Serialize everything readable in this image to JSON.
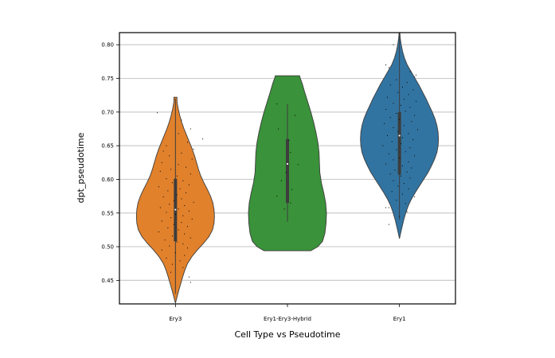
{
  "chart_data": {
    "type": "violin",
    "title": "",
    "xlabel": "Cell Type vs Pseudotime",
    "ylabel": "dpt_pseudotime",
    "ylim": [
      0.415,
      0.818
    ],
    "yticks": [
      0.45,
      0.5,
      0.55,
      0.6,
      0.65,
      0.7,
      0.75,
      0.8
    ],
    "ytick_labels": [
      "0.45",
      "0.50",
      "0.55",
      "0.60",
      "0.65",
      "0.70",
      "0.75",
      "0.80"
    ],
    "grid": "horizontal",
    "legend": "none",
    "categories": [
      "Ery3",
      "Ery1-Ery3-Hybrid",
      "Ery1"
    ],
    "violins": [
      {
        "category": "Ery3",
        "color": "#e1812c",
        "q1": 0.508,
        "median": 0.555,
        "q3": 0.601,
        "whisker_low": 0.43,
        "whisker_high": 0.72,
        "profile": [
          [
            0.416,
            0.0
          ],
          [
            0.425,
            0.04
          ],
          [
            0.435,
            0.085
          ],
          [
            0.445,
            0.135
          ],
          [
            0.455,
            0.185
          ],
          [
            0.465,
            0.24
          ],
          [
            0.475,
            0.31
          ],
          [
            0.485,
            0.42
          ],
          [
            0.495,
            0.56
          ],
          [
            0.505,
            0.72
          ],
          [
            0.515,
            0.86
          ],
          [
            0.525,
            0.95
          ],
          [
            0.535,
            0.99
          ],
          [
            0.545,
            1.0
          ],
          [
            0.555,
            0.99
          ],
          [
            0.565,
            0.96
          ],
          [
            0.575,
            0.9
          ],
          [
            0.585,
            0.82
          ],
          [
            0.595,
            0.73
          ],
          [
            0.605,
            0.65
          ],
          [
            0.615,
            0.59
          ],
          [
            0.625,
            0.54
          ],
          [
            0.635,
            0.49
          ],
          [
            0.645,
            0.43
          ],
          [
            0.655,
            0.36
          ],
          [
            0.665,
            0.29
          ],
          [
            0.675,
            0.22
          ],
          [
            0.685,
            0.16
          ],
          [
            0.695,
            0.11
          ],
          [
            0.705,
            0.07
          ],
          [
            0.715,
            0.04
          ],
          [
            0.722,
            0.04
          ]
        ],
        "points": [
          [
            0.699,
            -0.6
          ],
          [
            0.688,
            0.2
          ],
          [
            0.675,
            0.5
          ],
          [
            0.668,
            0.1
          ],
          [
            0.66,
            0.9
          ],
          [
            0.655,
            0.4
          ],
          [
            0.65,
            -0.3
          ],
          [
            0.645,
            0.6
          ],
          [
            0.642,
            -0.4
          ],
          [
            0.639,
            0.2
          ],
          [
            0.635,
            -0.2
          ],
          [
            0.63,
            0.55
          ],
          [
            0.625,
            -0.45
          ],
          [
            0.622,
            0.1
          ],
          [
            0.618,
            0.35
          ],
          [
            0.615,
            -0.15
          ],
          [
            0.612,
            -0.5
          ],
          [
            0.608,
            0.5
          ],
          [
            0.605,
            0.05
          ],
          [
            0.601,
            -0.3
          ],
          [
            0.598,
            0.25
          ],
          [
            0.595,
            -0.1
          ],
          [
            0.592,
            0.45
          ],
          [
            0.589,
            -0.55
          ],
          [
            0.586,
            0.15
          ],
          [
            0.583,
            -0.25
          ],
          [
            0.58,
            0.35
          ],
          [
            0.577,
            0.05
          ],
          [
            0.574,
            -0.4
          ],
          [
            0.571,
            0.2
          ],
          [
            0.568,
            -0.05
          ],
          [
            0.566,
            0.6
          ],
          [
            0.563,
            -0.2
          ],
          [
            0.561,
            0.3
          ],
          [
            0.558,
            -0.5
          ],
          [
            0.556,
            0.1
          ],
          [
            0.553,
            0.45
          ],
          [
            0.551,
            -0.3
          ],
          [
            0.548,
            0.0
          ],
          [
            0.546,
            0.25
          ],
          [
            0.543,
            -0.15
          ],
          [
            0.541,
            0.55
          ],
          [
            0.538,
            -0.45
          ],
          [
            0.536,
            0.2
          ],
          [
            0.533,
            -0.05
          ],
          [
            0.53,
            0.4
          ],
          [
            0.528,
            -0.25
          ],
          [
            0.525,
            0.1
          ],
          [
            0.522,
            -0.55
          ],
          [
            0.519,
            0.3
          ],
          [
            0.516,
            -0.1
          ],
          [
            0.513,
            0.5
          ],
          [
            0.51,
            -0.35
          ],
          [
            0.507,
            0.05
          ],
          [
            0.504,
            0.25
          ],
          [
            0.501,
            -0.2
          ],
          [
            0.498,
            0.4
          ],
          [
            0.495,
            -0.45
          ],
          [
            0.491,
            0.0
          ],
          [
            0.487,
            0.3
          ],
          [
            0.483,
            -0.3
          ],
          [
            0.479,
            0.15
          ],
          [
            0.474,
            -0.1
          ],
          [
            0.469,
            0.25
          ],
          [
            0.462,
            -0.15
          ],
          [
            0.455,
            0.45
          ],
          [
            0.447,
            0.5
          ]
        ]
      },
      {
        "category": "Ery1-Ery3-Hybrid",
        "color": "#3a923a",
        "q1": 0.565,
        "median": 0.623,
        "q3": 0.66,
        "whisker_low": 0.537,
        "whisker_high": 0.712,
        "profile": [
          [
            0.494,
            0.6
          ],
          [
            0.5,
            0.78
          ],
          [
            0.508,
            0.9
          ],
          [
            0.52,
            0.96
          ],
          [
            0.535,
            0.99
          ],
          [
            0.55,
            1.0
          ],
          [
            0.565,
            0.98
          ],
          [
            0.58,
            0.93
          ],
          [
            0.595,
            0.87
          ],
          [
            0.61,
            0.83
          ],
          [
            0.625,
            0.82
          ],
          [
            0.64,
            0.81
          ],
          [
            0.655,
            0.78
          ],
          [
            0.67,
            0.73
          ],
          [
            0.685,
            0.67
          ],
          [
            0.7,
            0.6
          ],
          [
            0.715,
            0.52
          ],
          [
            0.73,
            0.44
          ],
          [
            0.742,
            0.38
          ],
          [
            0.75,
            0.33
          ],
          [
            0.754,
            0.31
          ]
        ],
        "points": [
          [
            0.712,
            -0.35
          ],
          [
            0.695,
            0.25
          ],
          [
            0.675,
            -0.3
          ],
          [
            0.658,
            0.05
          ],
          [
            0.64,
            0.1
          ],
          [
            0.622,
            0.35
          ],
          [
            0.61,
            -0.05
          ],
          [
            0.598,
            -0.2
          ],
          [
            0.585,
            0.15
          ],
          [
            0.575,
            -0.35
          ],
          [
            0.565,
            0.1
          ],
          [
            0.556,
            -0.1
          ]
        ]
      },
      {
        "category": "Ery1",
        "color": "#3274a1",
        "q1": 0.607,
        "median": 0.665,
        "q3": 0.7,
        "whisker_low": 0.54,
        "whisker_high": 0.818,
        "profile": [
          [
            0.512,
            0.0
          ],
          [
            0.52,
            0.03
          ],
          [
            0.53,
            0.07
          ],
          [
            0.54,
            0.11
          ],
          [
            0.55,
            0.16
          ],
          [
            0.56,
            0.22
          ],
          [
            0.57,
            0.3
          ],
          [
            0.58,
            0.4
          ],
          [
            0.59,
            0.51
          ],
          [
            0.6,
            0.62
          ],
          [
            0.61,
            0.73
          ],
          [
            0.62,
            0.82
          ],
          [
            0.63,
            0.9
          ],
          [
            0.64,
            0.96
          ],
          [
            0.65,
            0.99
          ],
          [
            0.66,
            1.0
          ],
          [
            0.67,
            0.99
          ],
          [
            0.68,
            0.96
          ],
          [
            0.69,
            0.91
          ],
          [
            0.7,
            0.84
          ],
          [
            0.71,
            0.76
          ],
          [
            0.72,
            0.68
          ],
          [
            0.73,
            0.59
          ],
          [
            0.74,
            0.5
          ],
          [
            0.75,
            0.4
          ],
          [
            0.76,
            0.3
          ],
          [
            0.77,
            0.2
          ],
          [
            0.78,
            0.13
          ],
          [
            0.79,
            0.08
          ],
          [
            0.8,
            0.045
          ],
          [
            0.81,
            0.02
          ],
          [
            0.818,
            0.01
          ]
        ],
        "points": [
          [
            0.8,
            -0.2
          ],
          [
            0.77,
            -0.45
          ],
          [
            0.766,
            -0.35
          ],
          [
            0.76,
            0.35
          ],
          [
            0.755,
            0.55
          ],
          [
            0.752,
            0.5
          ],
          [
            0.748,
            -0.1
          ],
          [
            0.744,
            0.25
          ],
          [
            0.74,
            -0.3
          ],
          [
            0.737,
            0.1
          ],
          [
            0.733,
            0.45
          ],
          [
            0.729,
            -0.05
          ],
          [
            0.726,
            0.3
          ],
          [
            0.722,
            -0.4
          ],
          [
            0.719,
            0.15
          ],
          [
            0.716,
            0.55
          ],
          [
            0.713,
            -0.2
          ],
          [
            0.71,
            0.05
          ],
          [
            0.707,
            0.35
          ],
          [
            0.704,
            -0.45
          ],
          [
            0.701,
            0.2
          ],
          [
            0.698,
            -0.1
          ],
          [
            0.695,
            0.5
          ],
          [
            0.692,
            -0.3
          ],
          [
            0.689,
            0.0
          ],
          [
            0.686,
            0.4
          ],
          [
            0.683,
            -0.5
          ],
          [
            0.68,
            0.15
          ],
          [
            0.677,
            -0.2
          ],
          [
            0.674,
            0.6
          ],
          [
            0.671,
            -0.05
          ],
          [
            0.668,
            0.3
          ],
          [
            0.665,
            -0.4
          ],
          [
            0.662,
            0.1
          ],
          [
            0.659,
            0.45
          ],
          [
            0.656,
            -0.25
          ],
          [
            0.653,
            0.05
          ],
          [
            0.65,
            -0.55
          ],
          [
            0.647,
            0.35
          ],
          [
            0.644,
            -0.1
          ],
          [
            0.641,
            0.2
          ],
          [
            0.638,
            -0.35
          ],
          [
            0.635,
            0.5
          ],
          [
            0.632,
            0.0
          ],
          [
            0.629,
            -0.2
          ],
          [
            0.626,
            0.3
          ],
          [
            0.623,
            -0.45
          ],
          [
            0.62,
            0.1
          ],
          [
            0.617,
            0.4
          ],
          [
            0.614,
            -0.15
          ],
          [
            0.611,
            0.25
          ],
          [
            0.608,
            -0.3
          ],
          [
            0.605,
            0.05
          ],
          [
            0.602,
            0.35
          ],
          [
            0.598,
            -0.2
          ],
          [
            0.594,
            0.15
          ],
          [
            0.59,
            -0.05
          ],
          [
            0.586,
            0.3
          ],
          [
            0.582,
            -0.25
          ],
          [
            0.578,
            0.1
          ],
          [
            0.574,
            0.5
          ],
          [
            0.569,
            -0.1
          ],
          [
            0.564,
            0.2
          ],
          [
            0.558,
            -0.35
          ],
          [
            0.552,
            0.25
          ],
          [
            0.545,
            0.0
          ],
          [
            0.533,
            -0.35
          ],
          [
            0.558,
            -0.45
          ]
        ]
      }
    ]
  }
}
